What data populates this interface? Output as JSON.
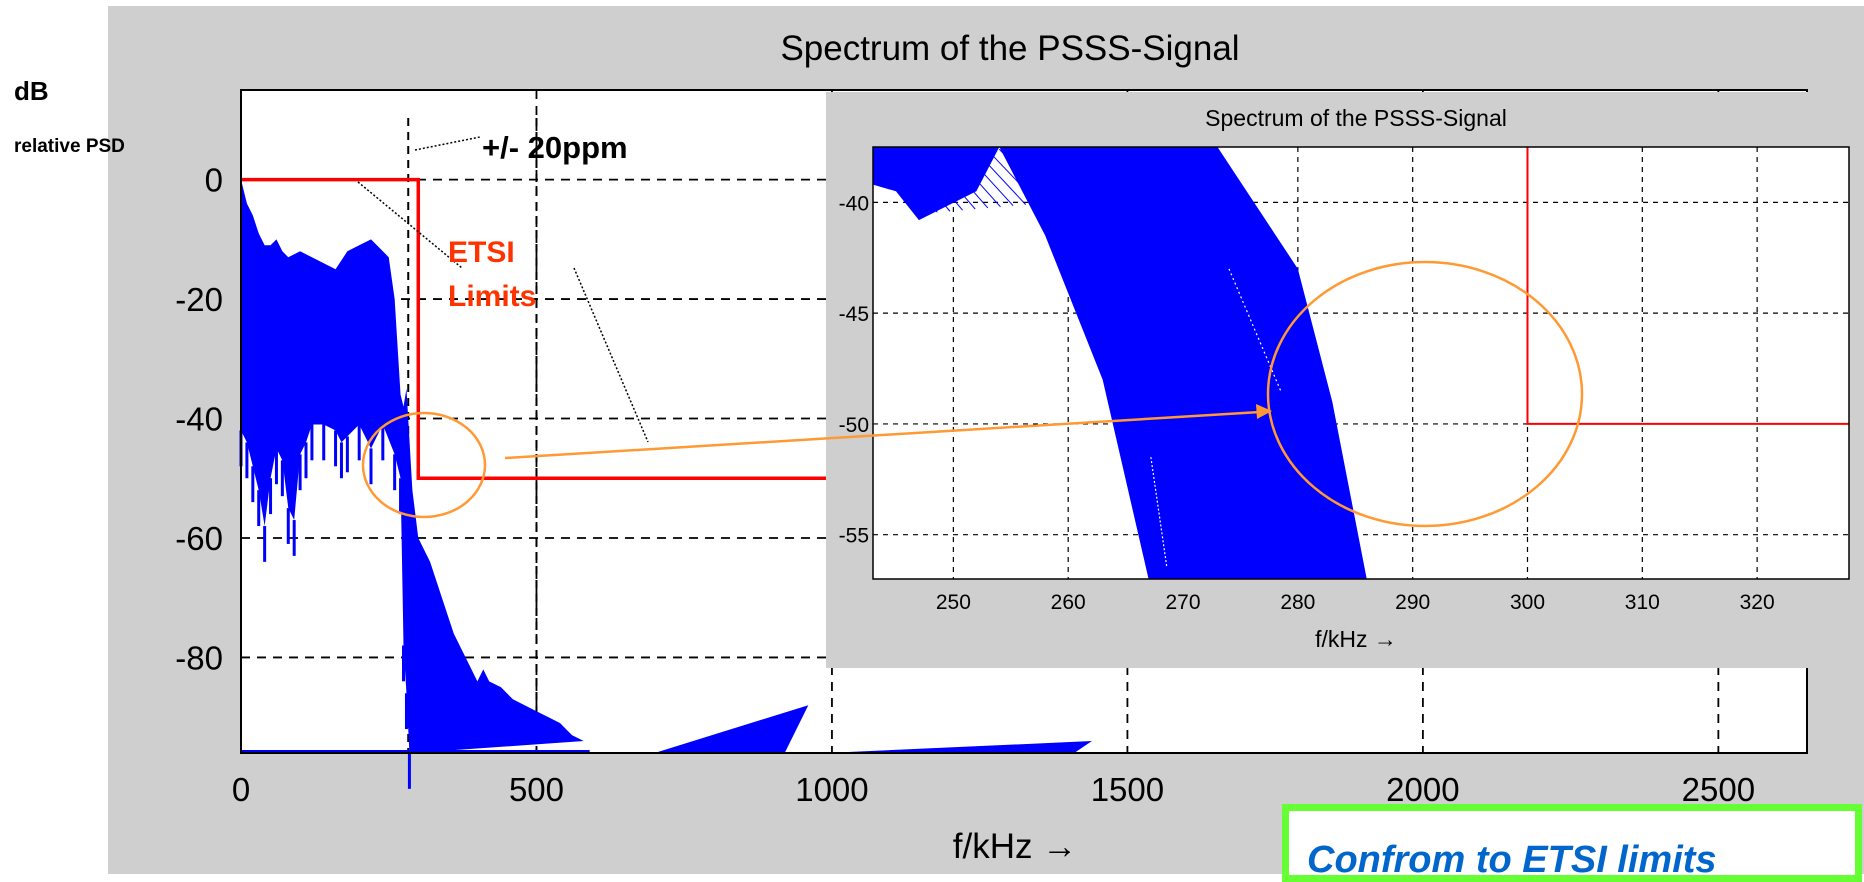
{
  "colors": {
    "figure_background": "#cfcfcf",
    "plot_background": "#ffffff",
    "signal": "#0000ff",
    "limit_line": "#ff0000",
    "annotation_red": "#ff3300",
    "highlight_orange": "#ff9933",
    "conclusion_border": "#66ff33",
    "conclusion_text": "#0066cc"
  },
  "y_label_title": "dB",
  "y_label_sub": "relative PSD",
  "annotations": {
    "ppm": "+/- 20ppm",
    "etsi_line1": "ETSI",
    "etsi_line2": "Limits"
  },
  "conclusion_text": "Confrom to ETSI limits",
  "chart_data": [
    {
      "type": "area",
      "title": "Spectrum of the PSSS-Signal",
      "xlabel": "f/kHz →",
      "ylabel": "",
      "xlim": [
        0,
        2650
      ],
      "ylim": [
        -96,
        15
      ],
      "x_ticks": [
        0,
        500,
        1000,
        1500,
        2000,
        2500
      ],
      "y_ticks": [
        0,
        -20,
        -40,
        -60,
        -80
      ],
      "grid": true,
      "vertical_markers": [
        283,
        500
      ],
      "series": [
        {
          "kind": "spectrum",
          "upper": [
            [
              0,
              0
            ],
            [
              10,
              -4
            ],
            [
              20,
              -6
            ],
            [
              30,
              -9
            ],
            [
              40,
              -11
            ],
            [
              50,
              -11
            ],
            [
              60,
              -10
            ],
            [
              70,
              -12
            ],
            [
              80,
              -13
            ],
            [
              100,
              -12
            ],
            [
              120,
              -13
            ],
            [
              140,
              -14
            ],
            [
              160,
              -15
            ],
            [
              180,
              -12
            ],
            [
              200,
              -11
            ],
            [
              220,
              -10
            ],
            [
              240,
              -12
            ],
            [
              250,
              -13
            ],
            [
              260,
              -20
            ],
            [
              270,
              -36
            ],
            [
              275,
              -38
            ],
            [
              280,
              -35
            ],
            [
              290,
              -52
            ],
            [
              300,
              -60
            ],
            [
              320,
              -64
            ],
            [
              340,
              -70
            ],
            [
              360,
              -76
            ],
            [
              380,
              -80
            ],
            [
              400,
              -84
            ],
            [
              410,
              -82
            ],
            [
              420,
              -84
            ],
            [
              440,
              -85
            ],
            [
              460,
              -87
            ],
            [
              480,
              -88
            ],
            [
              500,
              -89
            ],
            [
              520,
              -90
            ],
            [
              540,
              -91
            ],
            [
              560,
              -93
            ],
            [
              580,
              -94
            ]
          ],
          "lower": [
            [
              0,
              -42
            ],
            [
              10,
              -44
            ],
            [
              20,
              -48
            ],
            [
              30,
              -52
            ],
            [
              40,
              -58
            ],
            [
              50,
              -50
            ],
            [
              60,
              -45
            ],
            [
              70,
              -47
            ],
            [
              80,
              -55
            ],
            [
              90,
              -57
            ],
            [
              100,
              -46
            ],
            [
              110,
              -44
            ],
            [
              120,
              -41
            ],
            [
              140,
              -41
            ],
            [
              160,
              -42
            ],
            [
              170,
              -44
            ],
            [
              180,
              -43
            ],
            [
              200,
              -41
            ],
            [
              220,
              -45
            ],
            [
              240,
              -41
            ],
            [
              260,
              -46
            ],
            [
              270,
              -50
            ],
            [
              275,
              -78
            ],
            [
              280,
              -86
            ],
            [
              285,
              -96
            ],
            [
              290,
              -96
            ]
          ],
          "peaks": [
            [
              700,
              -96
            ],
            [
              920,
              -96
            ],
            [
              960,
              -88
            ],
            [
              990,
              -96
            ],
            [
              1410,
              -96
            ],
            [
              1440,
              -94
            ],
            [
              1460,
              -96
            ]
          ]
        },
        {
          "kind": "etsi-limit",
          "points": [
            [
              0,
              0
            ],
            [
              300,
              0
            ],
            [
              300,
              -50
            ],
            [
              2650,
              -50
            ]
          ]
        }
      ]
    },
    {
      "type": "area",
      "title": "Spectrum of the PSSS-Signal",
      "xlabel": "f/kHz →",
      "ylabel": "",
      "xlim": [
        243,
        328
      ],
      "ylim": [
        -57,
        -37.5
      ],
      "x_ticks": [
        250,
        260,
        270,
        280,
        290,
        300,
        310,
        320
      ],
      "y_ticks": [
        -40,
        -45,
        -50,
        -55
      ],
      "grid": true,
      "series": [
        {
          "kind": "spectrum-band",
          "polygon": [
            [
              243,
              -37.5
            ],
            [
              273,
              -37.5
            ],
            [
              280,
              -43
            ],
            [
              283,
              -49
            ],
            [
              286,
              -57
            ],
            [
              267,
              -57
            ],
            [
              263,
              -48
            ],
            [
              258,
              -41.5
            ],
            [
              254,
              -37.5
            ],
            [
              252,
              -39.5
            ],
            [
              247,
              -40.8
            ],
            [
              245,
              -39.5
            ],
            [
              243,
              -39.2
            ]
          ]
        },
        {
          "kind": "etsi-limit",
          "points": [
            [
              300,
              -37.5
            ],
            [
              300,
              -50
            ],
            [
              328,
              -50
            ]
          ]
        }
      ],
      "highlight_center": [
        291,
        -48.5
      ]
    }
  ]
}
